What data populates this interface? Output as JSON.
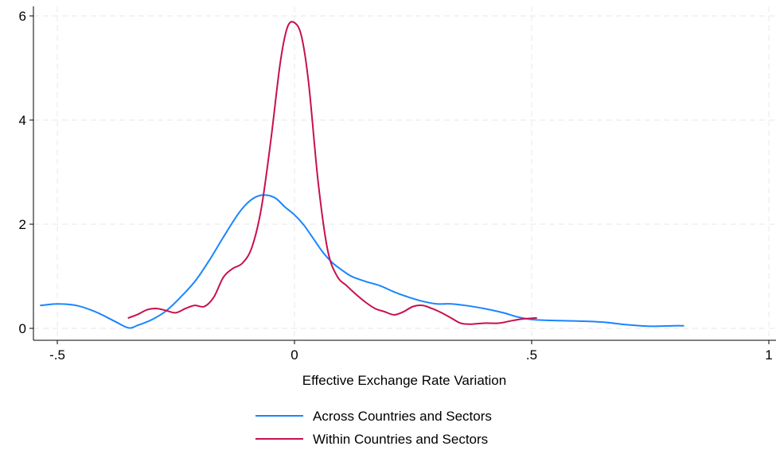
{
  "chart_data": {
    "type": "line",
    "title": "",
    "xlabel": "Effective Exchange Rate Variation",
    "ylabel": "",
    "xlim": [
      -0.54,
      1.0
    ],
    "ylim": [
      0,
      6.0
    ],
    "x_ticks": [
      -0.5,
      0,
      0.5,
      1
    ],
    "x_tick_labels": [
      "-.5",
      "0",
      ".5",
      "1"
    ],
    "y_ticks": [
      0,
      2,
      4,
      6
    ],
    "y_tick_labels": [
      "0",
      "2",
      "4",
      "6"
    ],
    "grid": true,
    "legend_position": "bottom",
    "series": [
      {
        "name": "Across Countries and Sectors",
        "color": "#1a85ff",
        "points": [
          [
            -0.535,
            0.44
          ],
          [
            -0.5,
            0.47
          ],
          [
            -0.46,
            0.44
          ],
          [
            -0.42,
            0.32
          ],
          [
            -0.38,
            0.14
          ],
          [
            -0.35,
            0.01
          ],
          [
            -0.33,
            0.06
          ],
          [
            -0.3,
            0.17
          ],
          [
            -0.27,
            0.34
          ],
          [
            -0.24,
            0.6
          ],
          [
            -0.21,
            0.9
          ],
          [
            -0.18,
            1.3
          ],
          [
            -0.15,
            1.75
          ],
          [
            -0.12,
            2.18
          ],
          [
            -0.1,
            2.4
          ],
          [
            -0.08,
            2.53
          ],
          [
            -0.06,
            2.56
          ],
          [
            -0.04,
            2.5
          ],
          [
            -0.02,
            2.33
          ],
          [
            0.0,
            2.18
          ],
          [
            0.02,
            1.98
          ],
          [
            0.04,
            1.72
          ],
          [
            0.06,
            1.46
          ],
          [
            0.08,
            1.26
          ],
          [
            0.1,
            1.12
          ],
          [
            0.12,
            1.0
          ],
          [
            0.15,
            0.9
          ],
          [
            0.18,
            0.82
          ],
          [
            0.21,
            0.7
          ],
          [
            0.24,
            0.6
          ],
          [
            0.27,
            0.52
          ],
          [
            0.3,
            0.47
          ],
          [
            0.33,
            0.47
          ],
          [
            0.36,
            0.44
          ],
          [
            0.4,
            0.38
          ],
          [
            0.44,
            0.3
          ],
          [
            0.47,
            0.22
          ],
          [
            0.5,
            0.17
          ],
          [
            0.55,
            0.15
          ],
          [
            0.6,
            0.14
          ],
          [
            0.65,
            0.12
          ],
          [
            0.7,
            0.07
          ],
          [
            0.75,
            0.04
          ],
          [
            0.8,
            0.05
          ],
          [
            0.82,
            0.05
          ]
        ]
      },
      {
        "name": "Within Countries and Sectors",
        "color": "#c8104f",
        "points": [
          [
            -0.35,
            0.2
          ],
          [
            -0.33,
            0.27
          ],
          [
            -0.31,
            0.36
          ],
          [
            -0.29,
            0.38
          ],
          [
            -0.27,
            0.34
          ],
          [
            -0.25,
            0.3
          ],
          [
            -0.23,
            0.38
          ],
          [
            -0.21,
            0.44
          ],
          [
            -0.19,
            0.42
          ],
          [
            -0.17,
            0.6
          ],
          [
            -0.15,
            0.98
          ],
          [
            -0.13,
            1.15
          ],
          [
            -0.11,
            1.25
          ],
          [
            -0.09,
            1.55
          ],
          [
            -0.07,
            2.3
          ],
          [
            -0.05,
            3.6
          ],
          [
            -0.03,
            5.1
          ],
          [
            -0.015,
            5.78
          ],
          [
            0.0,
            5.87
          ],
          [
            0.015,
            5.6
          ],
          [
            0.03,
            4.7
          ],
          [
            0.05,
            2.8
          ],
          [
            0.07,
            1.5
          ],
          [
            0.09,
            1.0
          ],
          [
            0.11,
            0.82
          ],
          [
            0.13,
            0.65
          ],
          [
            0.15,
            0.5
          ],
          [
            0.17,
            0.38
          ],
          [
            0.19,
            0.32
          ],
          [
            0.21,
            0.26
          ],
          [
            0.23,
            0.32
          ],
          [
            0.25,
            0.42
          ],
          [
            0.27,
            0.44
          ],
          [
            0.29,
            0.38
          ],
          [
            0.31,
            0.3
          ],
          [
            0.33,
            0.2
          ],
          [
            0.35,
            0.1
          ],
          [
            0.37,
            0.08
          ],
          [
            0.4,
            0.1
          ],
          [
            0.43,
            0.1
          ],
          [
            0.46,
            0.15
          ],
          [
            0.48,
            0.18
          ],
          [
            0.51,
            0.2
          ]
        ]
      }
    ]
  }
}
